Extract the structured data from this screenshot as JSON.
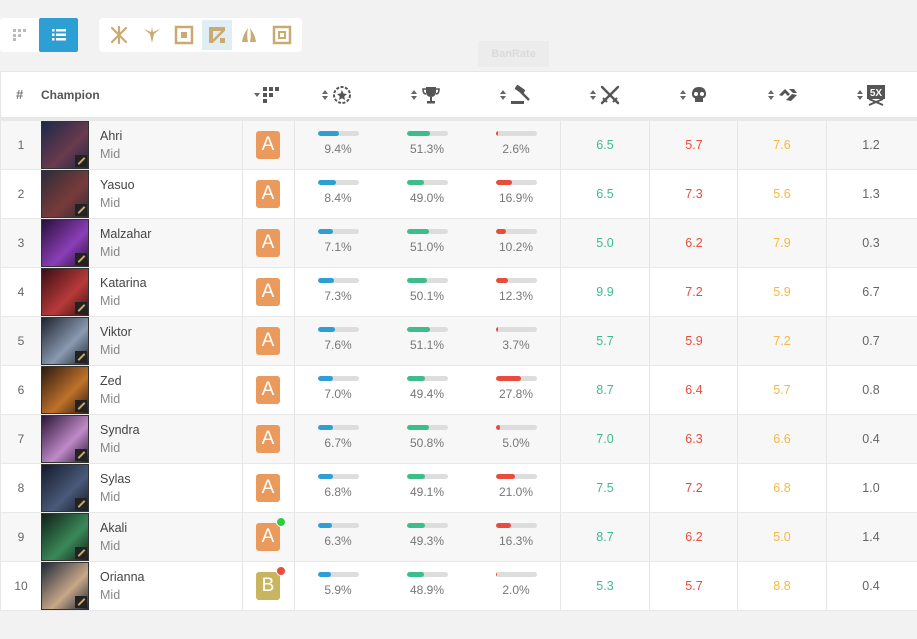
{
  "toolbar": {
    "views": [
      {
        "icon": "grid-view-icon",
        "active": false
      },
      {
        "icon": "list-view-icon",
        "active": true
      }
    ],
    "roles": [
      {
        "icon": "top-lane-icon",
        "active": false
      },
      {
        "icon": "jungle-icon",
        "active": false
      },
      {
        "icon": "mid-lane-icon",
        "active": false
      },
      {
        "icon": "bot-lane-icon",
        "active": true
      },
      {
        "icon": "support-icon",
        "active": false
      },
      {
        "icon": "all-roles-icon",
        "active": false
      }
    ],
    "tooltip": "BanRate"
  },
  "columns": {
    "rank": "#",
    "champion": "Champion",
    "tier_icon": "tier-icon",
    "pick_icon": "pick-rate-icon",
    "win_icon": "win-rate-icon",
    "ban_icon": "ban-rate-icon",
    "kills_icon": "kills-icon",
    "deaths_icon": "deaths-icon",
    "assists_icon": "assists-icon",
    "multikill_icon": "pentakill-icon"
  },
  "colors": {
    "pick": "#2e9fd4",
    "win": "#3dbd8c",
    "ban": "#e84c3d",
    "kills": "#3dbd8c",
    "deaths": "#e84c3d",
    "assists": "#f4b942",
    "tierA": "#e99a5c",
    "tierB": "#c9b55f",
    "up": "#2ecc40",
    "down": "#e84c3d"
  },
  "rows": [
    {
      "rank": "1",
      "name": "Ahri",
      "role": "Mid",
      "tier": "A",
      "trend": "",
      "pick": "9.4%",
      "pick_v": 0.52,
      "win": "51.3%",
      "win_v": 0.58,
      "ban": "2.6%",
      "ban_v": 0.05,
      "kills": "6.5",
      "deaths": "5.7",
      "assists": "7.6",
      "multi": "1.2",
      "avatar": [
        "#1b2a48",
        "#6b3a4f"
      ]
    },
    {
      "rank": "2",
      "name": "Yasuo",
      "role": "Mid",
      "tier": "A",
      "trend": "",
      "pick": "8.4%",
      "pick_v": 0.46,
      "win": "49.0%",
      "win_v": 0.43,
      "ban": "16.9%",
      "ban_v": 0.4,
      "kills": "6.5",
      "deaths": "7.3",
      "assists": "5.6",
      "multi": "1.3",
      "avatar": [
        "#2b2c3a",
        "#7a3b3b"
      ]
    },
    {
      "rank": "3",
      "name": "Malzahar",
      "role": "Mid",
      "tier": "A",
      "trend": "",
      "pick": "7.1%",
      "pick_v": 0.39,
      "win": "51.0%",
      "win_v": 0.56,
      "ban": "10.2%",
      "ban_v": 0.26,
      "kills": "5.0",
      "deaths": "6.2",
      "assists": "7.9",
      "multi": "0.3",
      "avatar": [
        "#2a0f3a",
        "#8a3fb8"
      ]
    },
    {
      "rank": "4",
      "name": "Katarina",
      "role": "Mid",
      "tier": "A",
      "trend": "",
      "pick": "7.3%",
      "pick_v": 0.4,
      "win": "50.1%",
      "win_v": 0.5,
      "ban": "12.3%",
      "ban_v": 0.31,
      "kills": "9.9",
      "deaths": "7.2",
      "assists": "5.9",
      "multi": "6.7",
      "avatar": [
        "#3a0f16",
        "#b83a3a"
      ]
    },
    {
      "rank": "5",
      "name": "Viktor",
      "role": "Mid",
      "tier": "A",
      "trend": "",
      "pick": "7.6%",
      "pick_v": 0.42,
      "win": "51.1%",
      "win_v": 0.57,
      "ban": "3.7%",
      "ban_v": 0.07,
      "kills": "5.7",
      "deaths": "5.9",
      "assists": "7.2",
      "multi": "0.7",
      "avatar": [
        "#1e2430",
        "#8a9ab0"
      ]
    },
    {
      "rank": "6",
      "name": "Zed",
      "role": "Mid",
      "tier": "A",
      "trend": "",
      "pick": "7.0%",
      "pick_v": 0.38,
      "win": "49.4%",
      "win_v": 0.46,
      "ban": "27.8%",
      "ban_v": 0.63,
      "kills": "8.7",
      "deaths": "6.4",
      "assists": "5.7",
      "multi": "0.8",
      "avatar": [
        "#2a1a10",
        "#c0722a"
      ]
    },
    {
      "rank": "7",
      "name": "Syndra",
      "role": "Mid",
      "tier": "A",
      "trend": "",
      "pick": "6.7%",
      "pick_v": 0.37,
      "win": "50.8%",
      "win_v": 0.55,
      "ban": "5.0%",
      "ban_v": 0.12,
      "kills": "7.0",
      "deaths": "6.3",
      "assists": "6.6",
      "multi": "0.4",
      "avatar": [
        "#2a1636",
        "#c08ac8"
      ]
    },
    {
      "rank": "8",
      "name": "Sylas",
      "role": "Mid",
      "tier": "A",
      "trend": "",
      "pick": "6.8%",
      "pick_v": 0.37,
      "win": "49.1%",
      "win_v": 0.44,
      "ban": "21.0%",
      "ban_v": 0.48,
      "kills": "7.5",
      "deaths": "7.2",
      "assists": "6.8",
      "multi": "1.0",
      "avatar": [
        "#141a2a",
        "#4a5a7a"
      ]
    },
    {
      "rank": "9",
      "name": "Akali",
      "role": "Mid",
      "tier": "A",
      "trend": "up",
      "pick": "6.3%",
      "pick_v": 0.35,
      "win": "49.3%",
      "win_v": 0.45,
      "ban": "16.3%",
      "ban_v": 0.38,
      "kills": "8.7",
      "deaths": "6.2",
      "assists": "5.0",
      "multi": "1.4",
      "avatar": [
        "#102018",
        "#3a8a5a"
      ]
    },
    {
      "rank": "10",
      "name": "Orianna",
      "role": "Mid",
      "tier": "B",
      "trend": "down",
      "pick": "5.9%",
      "pick_v": 0.33,
      "win": "48.9%",
      "win_v": 0.42,
      "ban": "2.0%",
      "ban_v": 0.04,
      "kills": "5.3",
      "deaths": "5.7",
      "assists": "8.8",
      "multi": "0.4",
      "avatar": [
        "#20283a",
        "#c8a888"
      ]
    }
  ]
}
